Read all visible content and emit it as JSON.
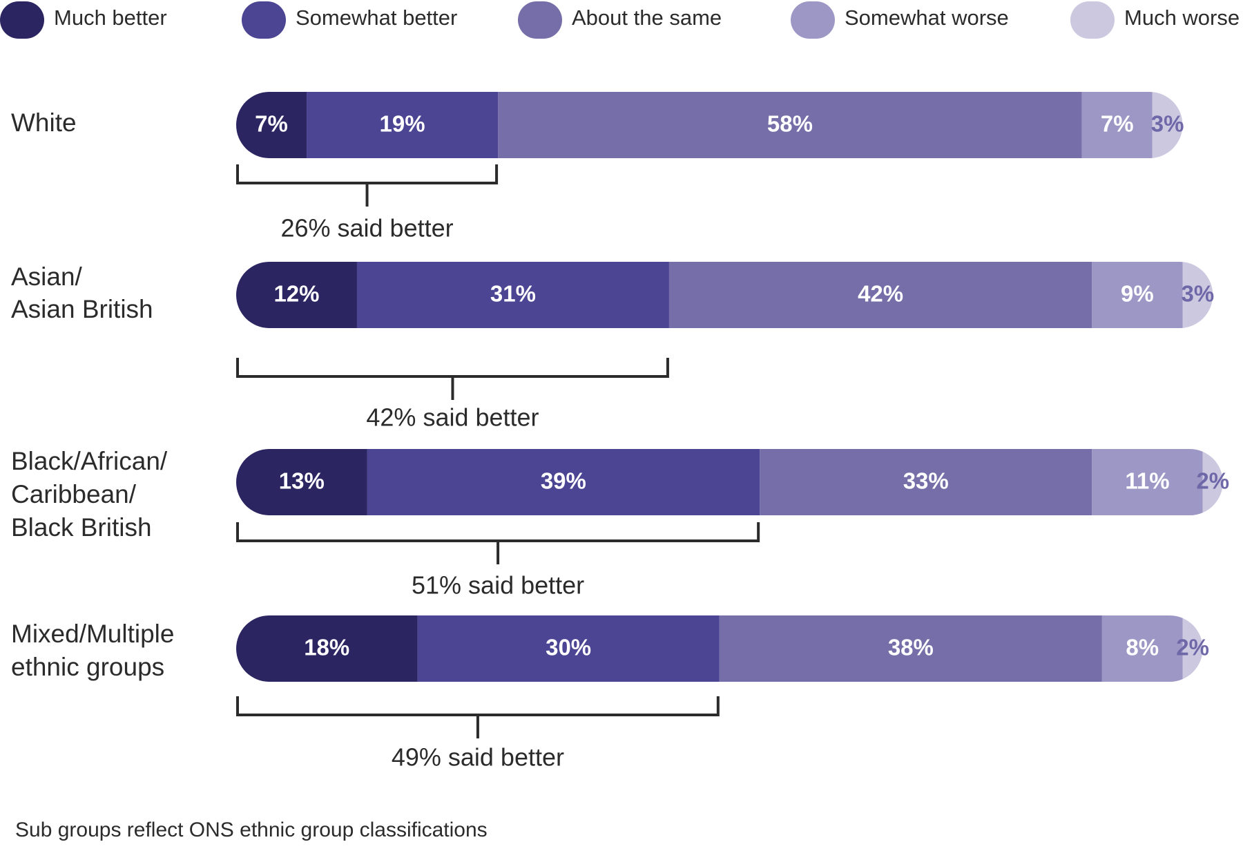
{
  "chart_data": {
    "type": "stacked-bar-horizontal",
    "categories": [
      [
        "White"
      ],
      [
        "Asian/",
        "Asian British"
      ],
      [
        "Black/African/",
        "Caribbean/",
        "Black British"
      ],
      [
        "Mixed/Multiple",
        "ethnic groups"
      ]
    ],
    "series": [
      {
        "name": "Much better",
        "color": "#2b2562",
        "values": [
          7,
          12,
          13,
          18
        ],
        "value_labels": [
          "7%",
          "12%",
          "13%",
          "18%"
        ]
      },
      {
        "name": "Somewhat better",
        "color": "#4b4593",
        "values": [
          19,
          31,
          39,
          30
        ],
        "value_labels": [
          "19%",
          "31%",
          "39%",
          "30%"
        ]
      },
      {
        "name": "About the same",
        "color": "#756ea8",
        "values": [
          58,
          42,
          33,
          38
        ],
        "value_labels": [
          "58%",
          "42%",
          "33%",
          "38%"
        ]
      },
      {
        "name": "Somewhat worse",
        "color": "#9d97c5",
        "values": [
          7,
          9,
          11,
          8
        ],
        "value_labels": [
          "7%",
          "9%",
          "11%",
          "8%"
        ]
      },
      {
        "name": "Much worse",
        "color": "#cbc8e0",
        "values": [
          3,
          3,
          2,
          2
        ],
        "value_labels": [
          "3%",
          "3%",
          "2%",
          "2%"
        ]
      }
    ],
    "xlim": [
      0,
      100
    ],
    "annotations": [
      "26% said better",
      "42% said better",
      "51% said better",
      "49% said better"
    ],
    "footnote": "Sub groups reflect ONS ethnic group classifications"
  }
}
